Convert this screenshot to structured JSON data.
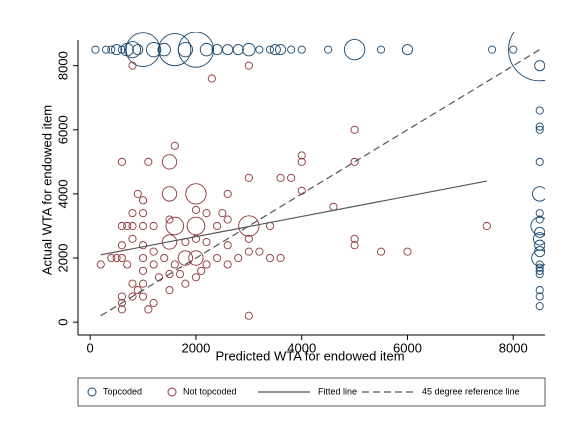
{
  "chart_data": {
    "type": "scatter",
    "x_label": "Predicted WTA for endowed item",
    "y_label": "Actual WTA for endowed item",
    "xlim": [
      -230,
      8600
    ],
    "ylim": [
      -400,
      8800
    ],
    "xticks": [
      0,
      2000,
      4000,
      6000,
      8000
    ],
    "yticks": [
      0,
      2000,
      4000,
      6000,
      8000
    ],
    "grid": false,
    "legend": "bottom",
    "series": [
      {
        "name": "Topcoded",
        "color": "#1a476f",
        "marker": "circle",
        "x": [
          100,
          300,
          400,
          500,
          600,
          700,
          800,
          900,
          1000,
          1200,
          1400,
          1600,
          1800,
          2000,
          2200,
          2400,
          2600,
          2800,
          3000,
          3200,
          3400,
          3500,
          3600,
          3800,
          4000,
          4500,
          5000,
          5500,
          6000,
          7600,
          8000,
          8500,
          8500,
          8500,
          8500,
          8500,
          8500,
          8500,
          8500,
          8500,
          8500,
          8500,
          8500,
          8500,
          8500,
          8500,
          8500,
          8500,
          8500,
          8500,
          8500,
          8500,
          8500
        ],
        "values": [
          8500,
          8500,
          8500,
          8500,
          8500,
          8500,
          8500,
          8500,
          8500,
          8500,
          8500,
          8500,
          8500,
          8500,
          8500,
          8500,
          8500,
          8500,
          8500,
          8500,
          8500,
          8500,
          8500,
          8500,
          8500,
          8500,
          8500,
          8500,
          8500,
          8500,
          8500,
          8500,
          8000,
          6600,
          6100,
          6000,
          5000,
          4000,
          3400,
          3200,
          3000,
          2800,
          2600,
          2400,
          2200,
          2000,
          1800,
          1700,
          1600,
          1500,
          1000,
          800,
          500
        ],
        "sizes": [
          1,
          1,
          1,
          2,
          1,
          3,
          5,
          2,
          22,
          4,
          3,
          20,
          4,
          24,
          3,
          2,
          2,
          2,
          3,
          1,
          1,
          2,
          2,
          1,
          1,
          1,
          8,
          1,
          2,
          1,
          1,
          75,
          2,
          1,
          1,
          1,
          1,
          4,
          1,
          1,
          6,
          2,
          3,
          2,
          2,
          5,
          1,
          1,
          1,
          1,
          1,
          1,
          1
        ]
      },
      {
        "name": "Not topcoded",
        "color": "#90353b",
        "marker": "circle",
        "x": [
          800,
          3000,
          2300,
          5000,
          4000,
          4000,
          5000,
          600,
          1100,
          1500,
          1600,
          3600,
          3800,
          3000,
          2600,
          4000,
          4600,
          7500,
          5000,
          5000,
          5500,
          6000,
          2000,
          1500,
          900,
          1000,
          800,
          1000,
          1500,
          2000,
          2200,
          2500,
          600,
          700,
          800,
          1000,
          1200,
          1600,
          2000,
          2400,
          2600,
          3000,
          3400,
          3000,
          3200,
          3400,
          3600,
          2600,
          2200,
          2000,
          1800,
          1500,
          1200,
          1000,
          800,
          600,
          600,
          500,
          200,
          400,
          700,
          1000,
          1000,
          1200,
          1400,
          1600,
          1700,
          1500,
          1300,
          1000,
          800,
          600,
          600,
          800,
          900,
          1000,
          1200,
          1500,
          1800,
          2000,
          2100,
          2200,
          2400,
          2800,
          3000,
          1100,
          600,
          1800,
          2000,
          2600,
          3000
        ],
        "values": [
          8000,
          8000,
          7600,
          6000,
          5200,
          5000,
          5000,
          5000,
          5000,
          5000,
          5500,
          4500,
          4500,
          4500,
          4000,
          4100,
          3600,
          3000,
          2600,
          2400,
          2200,
          2200,
          4000,
          4000,
          4000,
          3800,
          3400,
          3400,
          3200,
          3500,
          3400,
          3400,
          3000,
          3000,
          3000,
          3000,
          3000,
          3000,
          3000,
          3000,
          3200,
          3000,
          3000,
          2600,
          2200,
          2000,
          2000,
          2400,
          2500,
          2600,
          2500,
          2500,
          2200,
          2400,
          2600,
          2400,
          2000,
          2000,
          1800,
          2000,
          1800,
          2000,
          1600,
          1800,
          2000,
          1800,
          1500,
          1500,
          1400,
          1200,
          1200,
          800,
          600,
          800,
          1000,
          800,
          600,
          1000,
          1200,
          1400,
          1600,
          1800,
          2000,
          2000,
          200,
          400,
          400,
          2000,
          2000,
          1800,
          2200
        ],
        "sizes": [
          1,
          1,
          1,
          1,
          1,
          1,
          1,
          1,
          1,
          4,
          1,
          1,
          1,
          1,
          1,
          1,
          1,
          1,
          1,
          1,
          1,
          1,
          8,
          4,
          1,
          1,
          1,
          1,
          1,
          1,
          1,
          1,
          1,
          1,
          1,
          1,
          1,
          6,
          6,
          1,
          1,
          8,
          1,
          1,
          1,
          1,
          1,
          1,
          1,
          1,
          1,
          4,
          1,
          1,
          1,
          1,
          1,
          1,
          1,
          1,
          1,
          1,
          1,
          1,
          1,
          1,
          1,
          1,
          1,
          1,
          1,
          1,
          1,
          1,
          1,
          1,
          1,
          1,
          1,
          1,
          1,
          1,
          1,
          1,
          1,
          1,
          1,
          4,
          4,
          1,
          1
        ]
      },
      {
        "name": "Fitted line",
        "color": "#555555",
        "marker": "line",
        "style": "solid",
        "x": [
          200,
          7500
        ],
        "values": [
          2100,
          4400
        ]
      },
      {
        "name": "45 degree reference line",
        "color": "#555555",
        "marker": "line",
        "style": "dashed",
        "x": [
          200,
          8500
        ],
        "values": [
          200,
          8500
        ]
      }
    ]
  }
}
